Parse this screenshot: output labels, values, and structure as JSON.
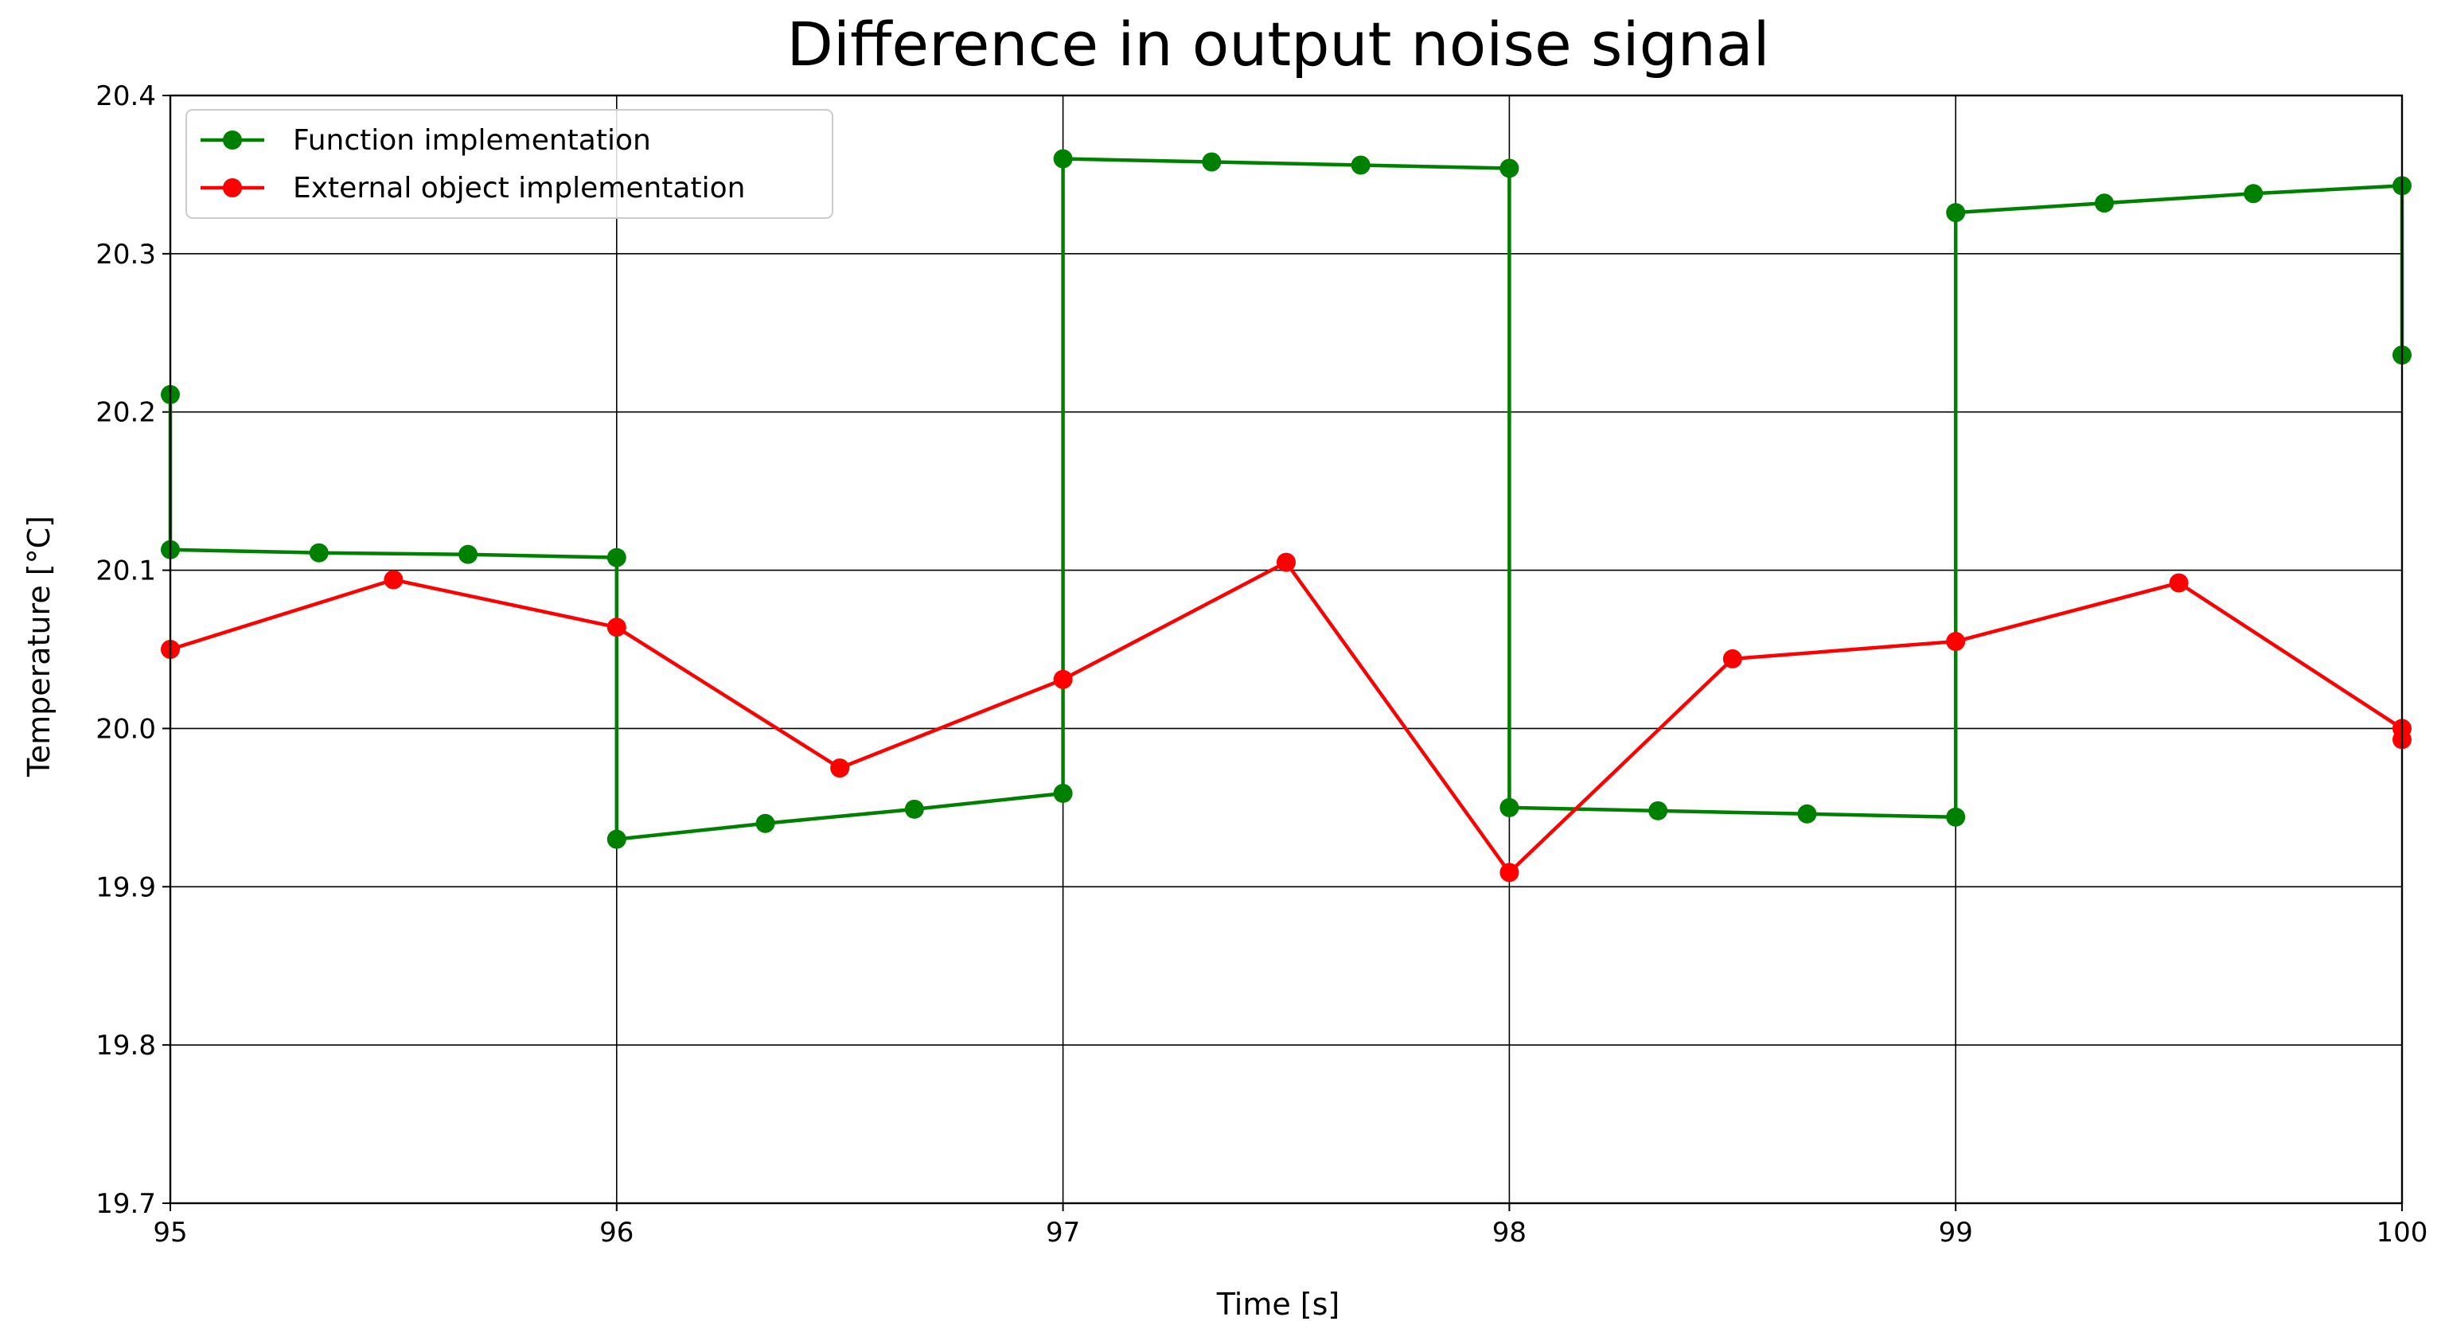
{
  "chart_data": {
    "type": "line",
    "title": "Difference in output noise signal",
    "xlabel": "Time [s]",
    "ylabel": "Temperature [°C]",
    "xlim": [
      95,
      100
    ],
    "ylim": [
      19.7,
      20.4
    ],
    "grid": true,
    "legend_position": "top-left",
    "x_ticks": [
      "95",
      "96",
      "97",
      "98",
      "99",
      "100"
    ],
    "y_ticks": [
      "19.7",
      "19.8",
      "19.9",
      "20.0",
      "20.1",
      "20.2",
      "20.3",
      "20.4"
    ],
    "series": [
      {
        "name": "Function implementation",
        "color": "#008000",
        "x": [
          95,
          95,
          95.333,
          95.667,
          96,
          96,
          96.333,
          96.667,
          97,
          97,
          97.333,
          97.667,
          98,
          98,
          98.333,
          98.667,
          99,
          99,
          99.333,
          99.667,
          100,
          100
        ],
        "y": [
          20.211,
          20.113,
          20.111,
          20.11,
          20.108,
          19.93,
          19.94,
          19.949,
          19.959,
          20.36,
          20.358,
          20.356,
          20.354,
          19.95,
          19.948,
          19.946,
          19.944,
          20.326,
          20.332,
          20.338,
          20.343,
          20.236
        ]
      },
      {
        "name": "External object implementation",
        "color": "#ff0000",
        "x": [
          95,
          95.5,
          96,
          96.5,
          97,
          97.5,
          98,
          98.5,
          99,
          99.5,
          100,
          100
        ],
        "y": [
          20.05,
          20.094,
          20.064,
          19.975,
          20.031,
          20.105,
          19.909,
          20.044,
          20.055,
          20.092,
          20.0,
          19.993
        ]
      }
    ]
  }
}
